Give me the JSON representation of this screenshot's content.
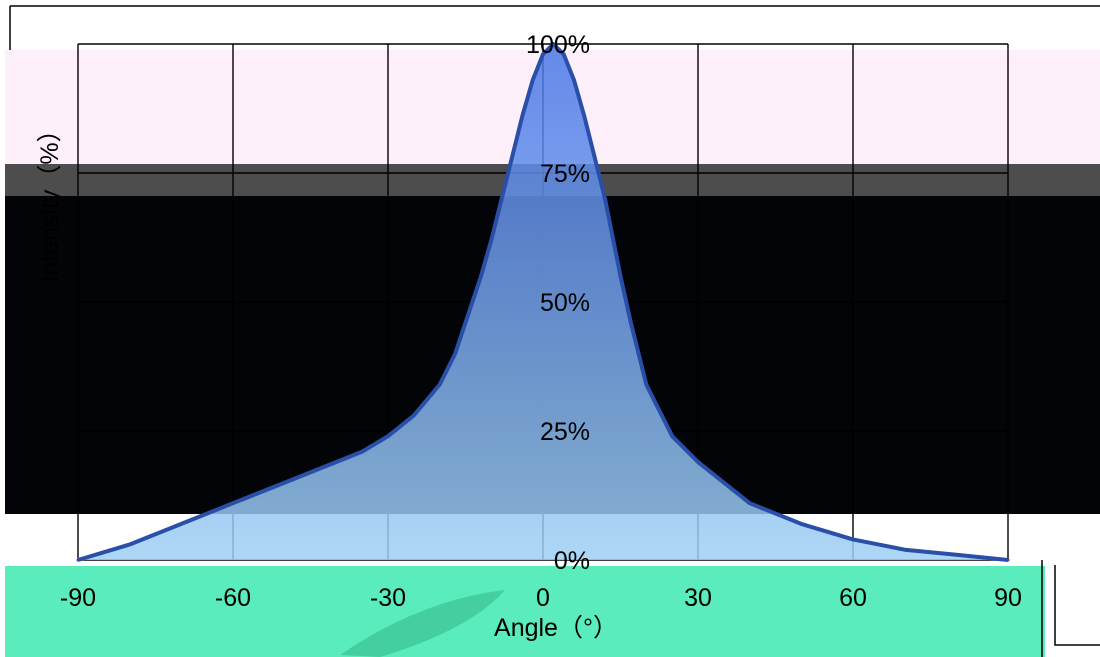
{
  "chart_data": {
    "type": "line",
    "title": "",
    "xlabel": "Angle（°）",
    "ylabel": "Intensity（%）",
    "xlim": [
      -90,
      90
    ],
    "ylim": [
      0,
      100
    ],
    "xticks": [
      "-90",
      "-60",
      "-30",
      "0",
      "30",
      "60",
      "90"
    ],
    "yticks": [
      "0%",
      "25%",
      "50%",
      "75%",
      "100%"
    ],
    "grid": true,
    "series": [
      {
        "x": [
          -90,
          -80,
          -70,
          -60,
          -50,
          -40,
          -35,
          -30,
          -25,
          -20,
          -17,
          -15,
          -12,
          -10,
          -8,
          -6,
          -4,
          -2,
          0,
          2,
          4,
          6,
          8,
          10,
          12,
          15,
          17,
          20,
          25,
          30,
          35,
          40,
          50,
          60,
          70,
          80,
          90
        ],
        "values": [
          0,
          3,
          7,
          11,
          15,
          19,
          21,
          24,
          28,
          34,
          40,
          46,
          55,
          62,
          70,
          78,
          86,
          93,
          98,
          100,
          98,
          93,
          86,
          78,
          70,
          55,
          46,
          34,
          24,
          19,
          15,
          11,
          7,
          4,
          2,
          1,
          0
        ],
        "color": "#2a4fa8",
        "fill_top": "#4a76e6",
        "fill_bottom": "#9fd0f4"
      }
    ]
  },
  "colors": {
    "band_pink": "#fdf0fb",
    "band_grey": "#4d4d4d",
    "band_black": "#020407",
    "band_green": "#5aecbc",
    "grid": "#000000"
  }
}
